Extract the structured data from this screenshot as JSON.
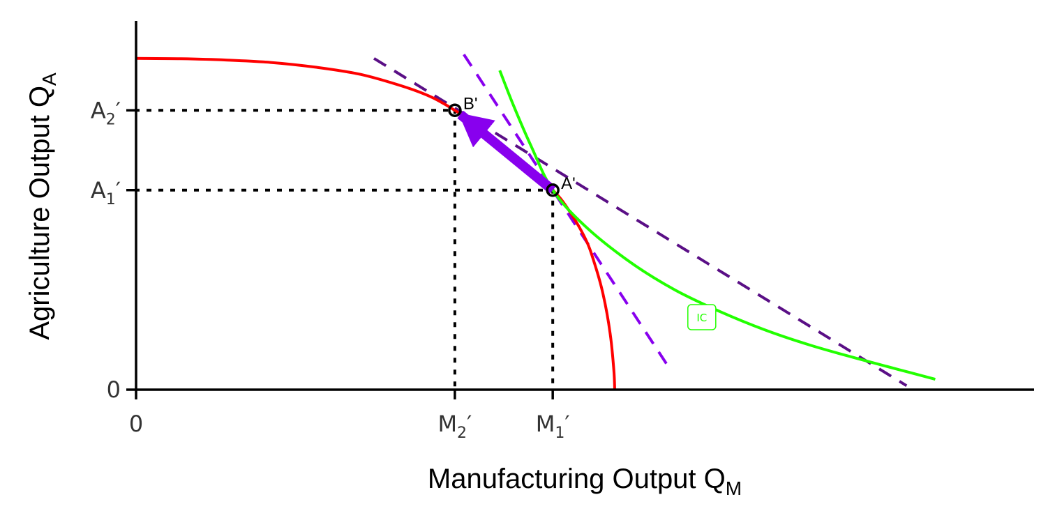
{
  "chart_data": {
    "type": "line",
    "xlabel": "Manufacturing Output Q",
    "xlabel_sub": "M",
    "ylabel": "Agriculture Output Q",
    "ylabel_sub": "A",
    "xlim": [
      0,
      10
    ],
    "ylim": [
      0,
      4.62
    ],
    "grid": false,
    "x_ticks": [
      {
        "value": 0,
        "label": "0",
        "sub": ""
      },
      {
        "value": 3.55,
        "label": "M",
        "sub": "2",
        "prime": "′"
      },
      {
        "value": 4.64,
        "label": "M",
        "sub": "1",
        "prime": "′"
      }
    ],
    "y_ticks": [
      {
        "value": 0,
        "label": "0",
        "sub": ""
      },
      {
        "value": 2.5,
        "label": "A",
        "sub": "1",
        "prime": "′"
      },
      {
        "value": 3.5,
        "label": "A",
        "sub": "2",
        "prime": "′"
      }
    ],
    "series": [
      {
        "name": "",
        "role": "production-possibilities-frontier",
        "color": "#ff0000",
        "x": [
          0,
          0.5,
          1.0,
          1.5,
          2.0,
          2.5,
          3.0,
          3.3,
          3.55,
          3.8,
          4.0,
          4.2,
          4.4,
          4.64,
          4.8,
          5.0,
          5.1,
          5.2,
          5.28,
          5.32,
          5.33
        ],
        "y": [
          4.15,
          4.146,
          4.13,
          4.1,
          4.04,
          3.95,
          3.79,
          3.66,
          3.5,
          3.31,
          3.14,
          2.93,
          2.72,
          2.5,
          2.28,
          1.9,
          1.6,
          1.2,
          0.7,
          0.25,
          0
        ]
      },
      {
        "name": "IC",
        "role": "indifference-curve",
        "color": "#22ff00",
        "x": [
          4.05,
          4.2,
          4.4,
          4.64,
          5.0,
          5.5,
          6.0,
          6.5,
          7.0,
          7.5,
          8.0,
          8.5,
          8.9
        ],
        "y": [
          4.0,
          3.57,
          3.05,
          2.5,
          2.05,
          1.6,
          1.25,
          0.98,
          0.75,
          0.56,
          0.4,
          0.25,
          0.13
        ]
      }
    ],
    "tangent_lines": [
      {
        "name": "",
        "color": "#5a0f86",
        "x": [
          2.65,
          8.58
        ],
        "y": [
          4.15,
          0.05
        ]
      },
      {
        "name": "",
        "color": "#8800ee",
        "x": [
          3.65,
          5.95
        ],
        "y": [
          4.2,
          0.25
        ]
      }
    ],
    "points": [
      {
        "label": "A'",
        "x": 4.64,
        "y": 2.5
      },
      {
        "label": "B'",
        "x": 3.55,
        "y": 3.5
      }
    ],
    "guides": [
      {
        "from_point": "A'"
      },
      {
        "from_point": "B'"
      }
    ],
    "arrow": {
      "from": "A'",
      "to": "B'",
      "color": "#8800ee"
    },
    "curve_label": {
      "text": "IC",
      "x": 6.3,
      "y": 0.9,
      "color": "#22ff00"
    }
  }
}
